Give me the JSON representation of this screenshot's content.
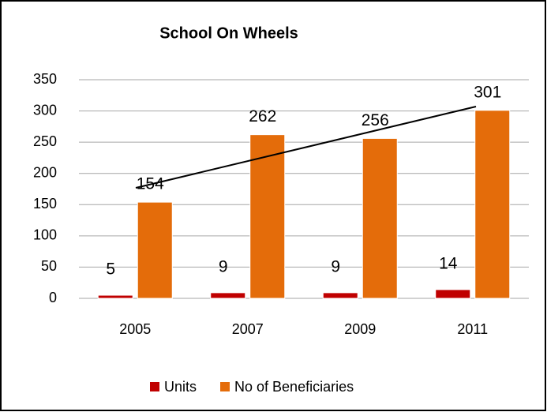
{
  "chart_data": {
    "type": "bar",
    "title": "School On Wheels",
    "categories": [
      "2005",
      "2007",
      "2009",
      "2011"
    ],
    "series": [
      {
        "name": "Units",
        "color": "#c00000",
        "values": [
          5,
          9,
          9,
          14
        ]
      },
      {
        "name": "No of Beneficiaries",
        "color": "#e46c0a",
        "values": [
          154,
          262,
          256,
          301
        ]
      }
    ],
    "ylim": [
      0,
      350
    ],
    "yticks": [
      0,
      50,
      100,
      150,
      200,
      250,
      300,
      350
    ],
    "grid": true,
    "legend": "bottom"
  }
}
